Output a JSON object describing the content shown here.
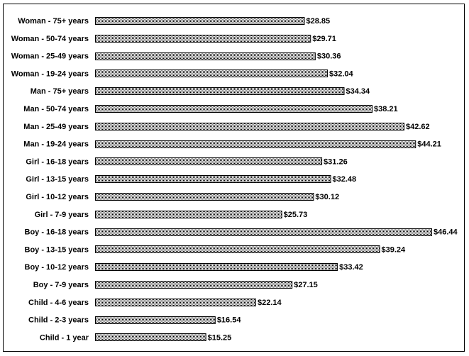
{
  "chart_data": {
    "type": "bar",
    "orientation": "horizontal",
    "categories": [
      "Woman - 75+ years",
      "Woman - 50-74 years",
      "Woman - 25-49 years",
      "Woman - 19-24 years",
      "Man - 75+ years",
      "Man - 50-74 years",
      "Man - 25-49 years",
      "Man - 19-24 years",
      "Girl - 16-18 years",
      "Girl - 13-15 years",
      "Girl - 10-12 years",
      "Girl - 7-9 years",
      "Boy - 16-18 years",
      "Boy - 13-15 years",
      "Boy - 10-12 years",
      "Boy - 7-9 years",
      "Child - 4-6 years",
      "Child - 2-3 years",
      "Child - 1 year"
    ],
    "values": [
      28.85,
      29.71,
      30.36,
      32.04,
      34.34,
      38.21,
      42.62,
      44.21,
      31.26,
      32.48,
      30.12,
      25.73,
      46.44,
      39.24,
      33.42,
      27.15,
      22.14,
      16.54,
      15.25
    ],
    "value_labels": [
      "$28.85",
      "$29.71",
      "$30.36",
      "$32.04",
      "$34.34",
      "$38.21",
      "$42.62",
      "$44.21",
      "$31.26",
      "$32.48",
      "$30.12",
      "$25.73",
      "$46.44",
      "$39.24",
      "$33.42",
      "$27.15",
      "$22.14",
      "$16.54",
      "$15.25"
    ],
    "xlim": [
      0,
      46.44
    ],
    "grid": false,
    "legend": "none",
    "bar_fill": "dotted-gray",
    "colors": {
      "bar_outline": "#000000",
      "bar_pattern_dot": "#000000",
      "bar_pattern_bg": "#ffffff",
      "background": "#ffffff"
    }
  }
}
